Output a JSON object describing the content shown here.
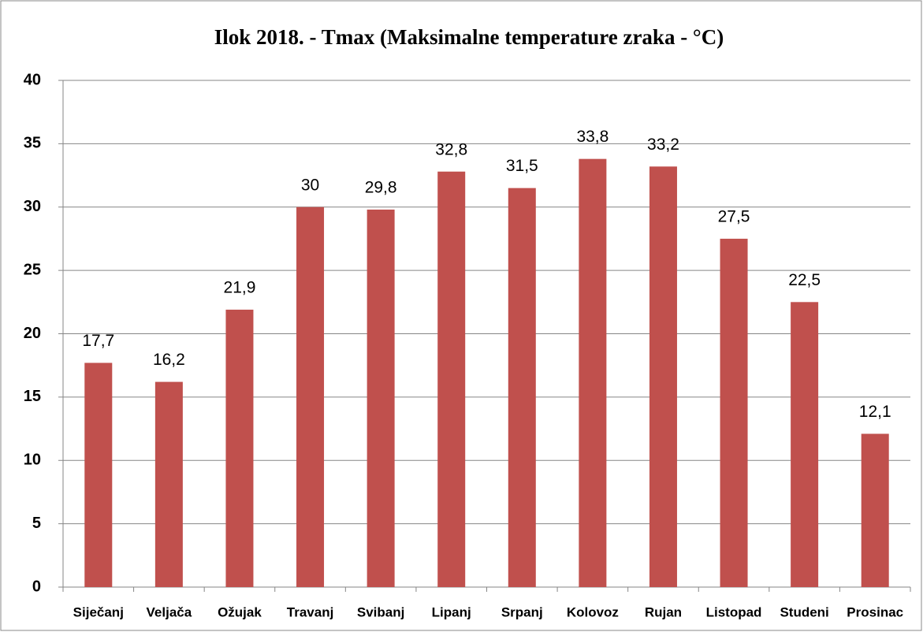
{
  "chart_data": {
    "type": "bar",
    "title": "Ilok 2018. - Tmax (Maksimalne temperature zraka - °C)",
    "categories": [
      "Siječanj",
      "Veljača",
      "Ožujak",
      "Travanj",
      "Svibanj",
      "Lipanj",
      "Srpanj",
      "Kolovoz",
      "Rujan",
      "Listopad",
      "Studeni",
      "Prosinac"
    ],
    "values": [
      17.7,
      16.2,
      21.9,
      30,
      29.8,
      32.8,
      31.5,
      33.8,
      33.2,
      27.5,
      22.5,
      12.1
    ],
    "value_labels": [
      "17,7",
      "16,2",
      "21,9",
      "30",
      "29,8",
      "32,8",
      "31,5",
      "33,8",
      "33,2",
      "27,5",
      "22,5",
      "12,1"
    ],
    "color": "#c0504d",
    "ylim": [
      0,
      40
    ],
    "yticks": [
      0,
      5,
      10,
      15,
      20,
      25,
      30,
      35,
      40
    ],
    "grid": true
  }
}
